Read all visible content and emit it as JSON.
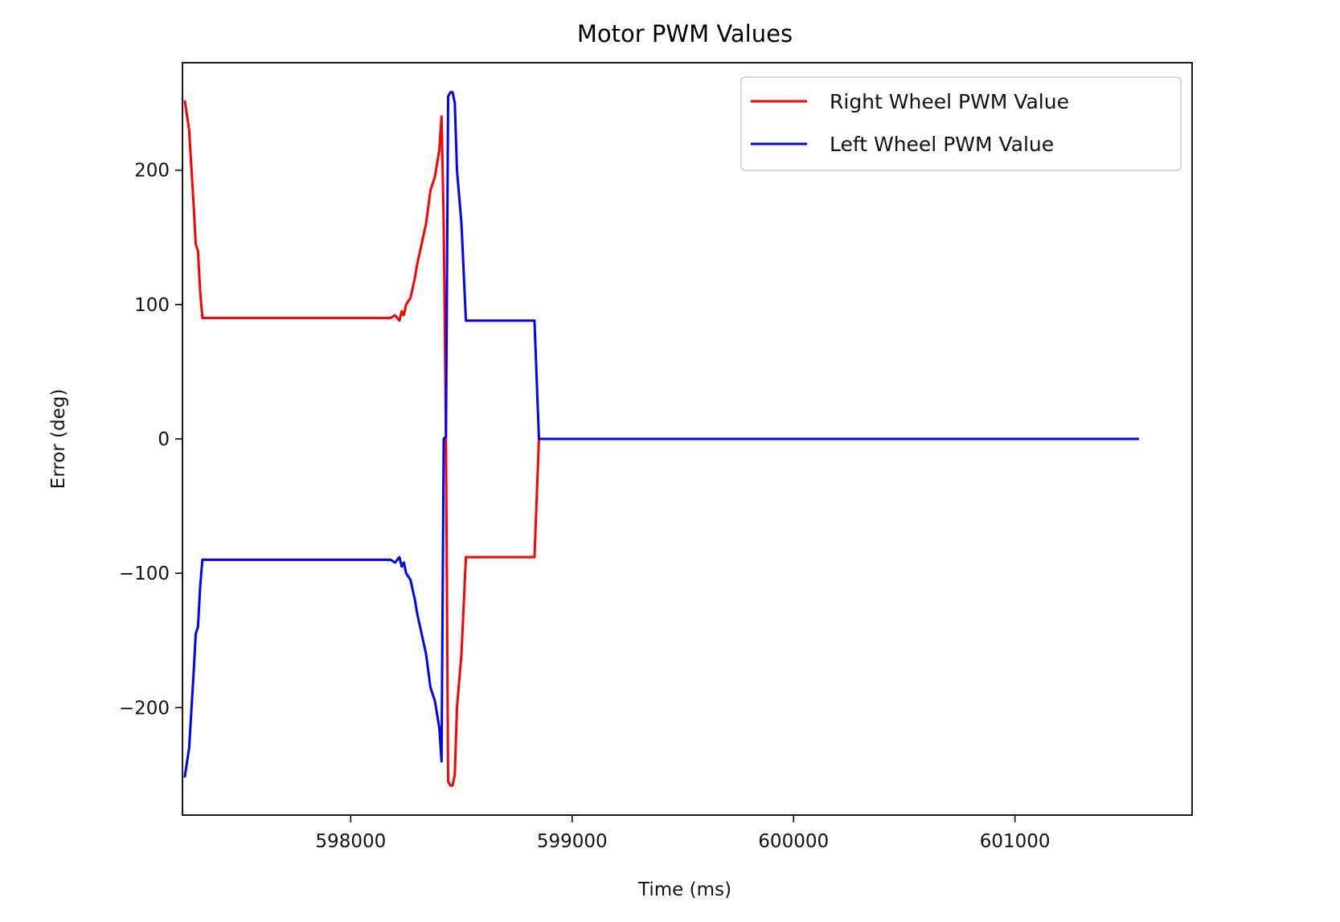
{
  "chart_data": {
    "type": "line",
    "title": "Motor PWM Values",
    "xlabel": "Time (ms)",
    "ylabel": "Error (deg)",
    "xlim": [
      597240,
      601800
    ],
    "ylim": [
      -280,
      280
    ],
    "xticks": [
      598000,
      599000,
      600000,
      601000
    ],
    "xtick_labels": [
      "598000",
      "599000",
      "600000",
      "601000"
    ],
    "yticks": [
      -200,
      -100,
      0,
      100,
      200
    ],
    "ytick_labels": [
      "−200",
      "−100",
      "0",
      "100",
      "200"
    ],
    "grid": false,
    "legend": "upper right",
    "series": [
      {
        "name": "Right Wheel PWM Value",
        "color": "#ff0000",
        "x": [
          597250,
          597270,
          597290,
          597300,
          597310,
          597320,
          597330,
          597360,
          597400,
          597500,
          597600,
          597700,
          597800,
          597900,
          598000,
          598100,
          598150,
          598180,
          598200,
          598220,
          598230,
          598240,
          598250,
          598270,
          598290,
          598300,
          598320,
          598340,
          598360,
          598380,
          598390,
          598400,
          598410,
          598420,
          598430,
          598440,
          598450,
          598460,
          598470,
          598480,
          598500,
          598520,
          598540,
          598560,
          598600,
          598700,
          598800,
          598830,
          598850,
          598860,
          599000,
          599500,
          600000,
          600500,
          601000,
          601500,
          601560
        ],
        "y": [
          252,
          230,
          175,
          145,
          140,
          110,
          90,
          90,
          90,
          90,
          90,
          90,
          90,
          90,
          90,
          90,
          90,
          90,
          92,
          88,
          95,
          92,
          100,
          105,
          120,
          130,
          145,
          160,
          185,
          195,
          205,
          215,
          240,
          160,
          0,
          -255,
          -258,
          -258,
          -250,
          -200,
          -160,
          -88,
          -88,
          -88,
          -88,
          -88,
          -88,
          -88,
          0,
          0,
          0,
          0,
          0,
          0,
          0,
          0,
          0
        ]
      },
      {
        "name": "Left Wheel PWM Value",
        "color": "#0000ff",
        "x": [
          597250,
          597270,
          597290,
          597300,
          597310,
          597320,
          597330,
          597360,
          597400,
          597500,
          597600,
          597700,
          597800,
          597900,
          598000,
          598100,
          598150,
          598180,
          598200,
          598220,
          598230,
          598240,
          598250,
          598270,
          598290,
          598300,
          598320,
          598340,
          598360,
          598380,
          598390,
          598400,
          598410,
          598420,
          598430,
          598440,
          598450,
          598460,
          598470,
          598480,
          598500,
          598520,
          598540,
          598560,
          598600,
          598700,
          598800,
          598830,
          598850,
          598860,
          599000,
          599500,
          600000,
          600500,
          601000,
          601500,
          601560
        ],
        "y": [
          -252,
          -230,
          -175,
          -145,
          -140,
          -110,
          -90,
          -90,
          -90,
          -90,
          -90,
          -90,
          -90,
          -90,
          -90,
          -90,
          -90,
          -90,
          -92,
          -88,
          -95,
          -92,
          -100,
          -105,
          -120,
          -130,
          -145,
          -160,
          -185,
          -195,
          -205,
          -215,
          -240,
          0,
          2,
          255,
          258,
          258,
          250,
          200,
          160,
          88,
          88,
          88,
          88,
          88,
          88,
          88,
          0,
          0,
          0,
          0,
          0,
          0,
          0,
          0,
          0
        ]
      }
    ]
  }
}
